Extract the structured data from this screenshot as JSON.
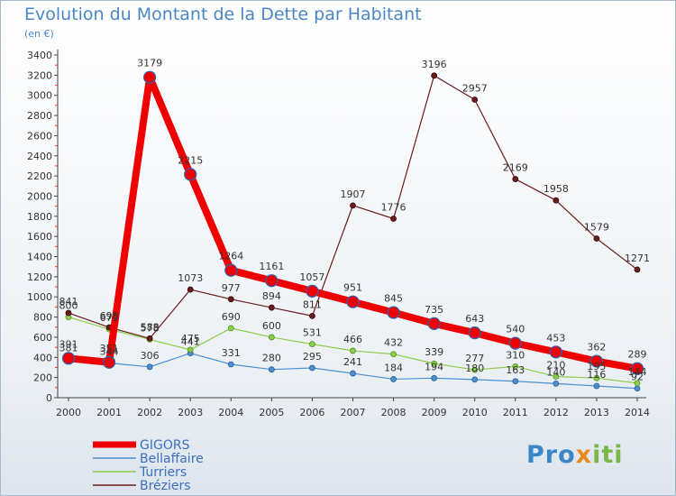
{
  "chart_data": {
    "type": "line",
    "title": "Evolution du Montant de la Dette par Habitant",
    "subtitle": "(en €)",
    "xlabel": "",
    "ylabel": "",
    "ylim": [
      0,
      3400
    ],
    "yticks": [
      0,
      200,
      400,
      600,
      800,
      1000,
      1200,
      1400,
      1600,
      1800,
      2000,
      2200,
      2400,
      2600,
      2800,
      3000,
      3200,
      3400
    ],
    "grid": false,
    "legend_position": "bottom-left",
    "x": [
      "2000",
      "2001",
      "2002",
      "2003",
      "2004",
      "2005",
      "2006",
      "2007",
      "2008",
      "2009",
      "2010",
      "2011",
      "2012",
      "2013",
      "2014"
    ],
    "series": [
      {
        "name": "GIGORS",
        "color": "#ee0000",
        "values": [
          391,
          351,
          3179,
          2215,
          1264,
          1161,
          1057,
          951,
          845,
          735,
          643,
          540,
          453,
          362,
          289
        ]
      },
      {
        "name": "Bellaffaire",
        "color": "#4a90d0",
        "values": [
          381,
          344,
          306,
          441,
          331,
          280,
          295,
          241,
          184,
          194,
          180,
          163,
          140,
          116,
          92
        ]
      },
      {
        "name": "Turriers",
        "color": "#8ccf4a",
        "values": [
          800,
          679,
          578,
          475,
          690,
          600,
          531,
          466,
          432,
          339,
          277,
          310,
          210,
          195,
          144
        ]
      },
      {
        "name": "Bréziers",
        "color": "#6a1c1c",
        "values": [
          841,
          698,
          588,
          1073,
          977,
          894,
          811,
          1907,
          1776,
          3196,
          2957,
          2169,
          1958,
          1579,
          1271
        ]
      }
    ]
  },
  "brand": {
    "part1": "Pro",
    "part2": "x",
    "part3": "iti"
  }
}
